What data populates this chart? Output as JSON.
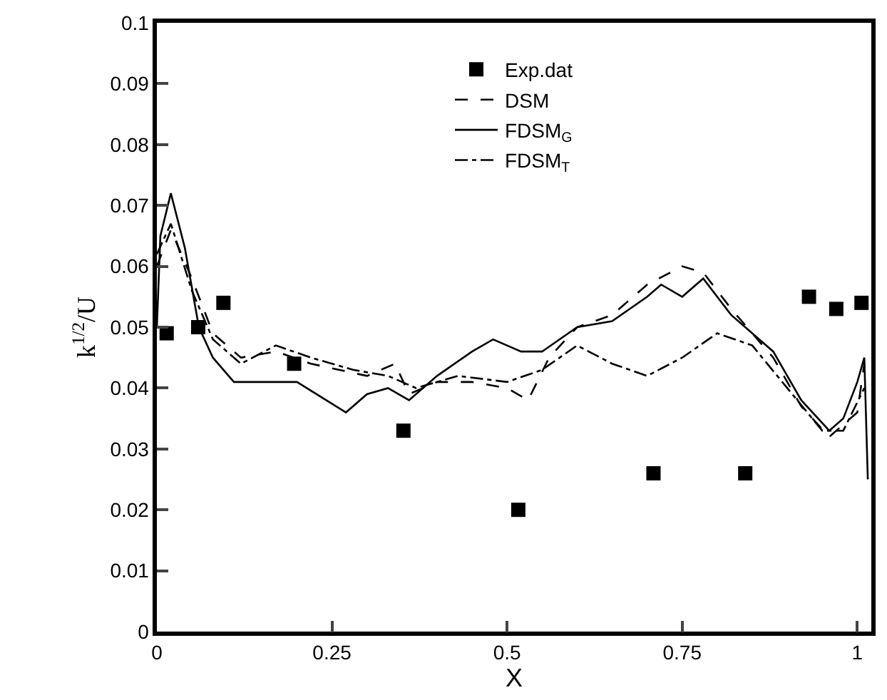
{
  "chart_data": {
    "type": "line",
    "xlabel": "X",
    "ylabel": "k$^{1/2}$/U",
    "xlim": [
      0,
      1.02
    ],
    "xticks": [
      0,
      0.25,
      0.5,
      0.75,
      1
    ],
    "ylim": [
      0,
      0.1
    ],
    "yticks": [
      0,
      0.01,
      0.02,
      0.03,
      0.04,
      0.05,
      0.06,
      0.07,
      0.08,
      0.09,
      0.1
    ],
    "legend": "top",
    "series": [
      {
        "name": "Exp.dat",
        "type": "scatter",
        "marker": "square",
        "color": "#000000",
        "x": [
          0.014,
          0.059,
          0.095,
          0.196,
          0.352,
          0.516,
          0.709,
          0.84,
          0.931,
          0.97,
          1.006
        ],
        "values": [
          0.049,
          0.05,
          0.054,
          0.044,
          0.033,
          0.02,
          0.026,
          0.026,
          0.055,
          0.053,
          0.054
        ]
      },
      {
        "name": "DSM",
        "line_style": "dashed",
        "color": "#000000",
        "x": [
          0,
          0.02,
          0.05,
          0.08,
          0.12,
          0.17,
          0.22,
          0.3,
          0.34,
          0.36,
          0.4,
          0.45,
          0.5,
          0.53,
          0.56,
          0.6,
          0.65,
          0.7,
          0.75,
          0.78,
          0.82,
          0.88,
          0.92,
          0.96,
          1.0,
          1.01
        ],
        "values": [
          0.06,
          0.066,
          0.058,
          0.049,
          0.045,
          0.046,
          0.044,
          0.042,
          0.044,
          0.039,
          0.041,
          0.041,
          0.04,
          0.038,
          0.045,
          0.05,
          0.052,
          0.057,
          0.06,
          0.059,
          0.053,
          0.045,
          0.037,
          0.032,
          0.036,
          0.044
        ]
      },
      {
        "name": "FDSM$_{G}$",
        "line_style": "solid",
        "color": "#000000",
        "x": [
          0,
          0.005,
          0.02,
          0.04,
          0.06,
          0.08,
          0.11,
          0.15,
          0.2,
          0.27,
          0.3,
          0.33,
          0.36,
          0.4,
          0.45,
          0.48,
          0.52,
          0.55,
          0.6,
          0.65,
          0.7,
          0.72,
          0.75,
          0.78,
          0.82,
          0.88,
          0.92,
          0.96,
          0.98,
          1.0,
          1.01,
          1.015
        ],
        "values": [
          0.05,
          0.065,
          0.072,
          0.063,
          0.05,
          0.045,
          0.041,
          0.041,
          0.041,
          0.036,
          0.039,
          0.04,
          0.038,
          0.042,
          0.046,
          0.048,
          0.046,
          0.046,
          0.05,
          0.051,
          0.055,
          0.057,
          0.055,
          0.058,
          0.052,
          0.046,
          0.038,
          0.033,
          0.035,
          0.041,
          0.045,
          0.025
        ]
      },
      {
        "name": "FDSM$_{T}$",
        "line_style": "dashdot",
        "color": "#000000",
        "x": [
          0,
          0.02,
          0.05,
          0.08,
          0.12,
          0.17,
          0.22,
          0.28,
          0.33,
          0.37,
          0.43,
          0.5,
          0.55,
          0.6,
          0.65,
          0.7,
          0.75,
          0.8,
          0.85,
          0.9,
          0.95,
          0.98,
          1.01
        ],
        "values": [
          0.062,
          0.067,
          0.056,
          0.048,
          0.044,
          0.047,
          0.045,
          0.043,
          0.042,
          0.04,
          0.042,
          0.041,
          0.043,
          0.047,
          0.044,
          0.042,
          0.045,
          0.049,
          0.047,
          0.04,
          0.033,
          0.033,
          0.04
        ]
      }
    ]
  }
}
